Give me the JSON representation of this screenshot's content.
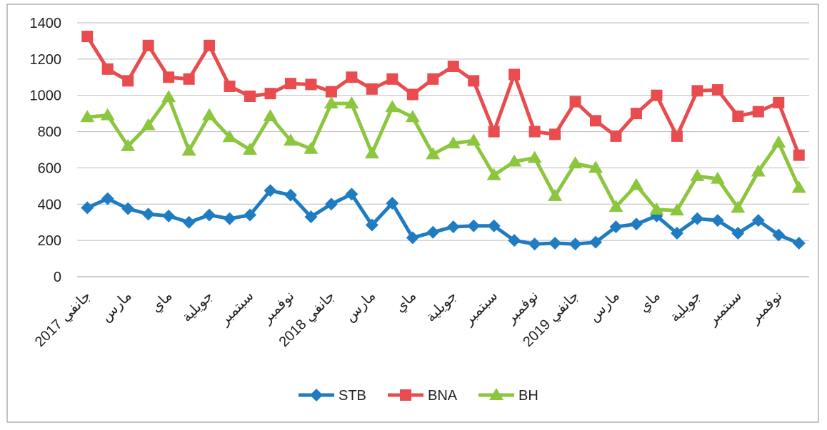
{
  "chart_data": {
    "type": "line",
    "categories": [
      "جانفي 2017",
      null,
      "مارس",
      null,
      "ماي",
      null,
      "جويلية",
      null,
      "سبتمبر",
      null,
      "نوفمبر",
      null,
      "جانفي 2018",
      null,
      "مارس",
      null,
      "ماي",
      null,
      "جويلية",
      null,
      "سبتمبر",
      null,
      "نوفمبر",
      null,
      "جانفي 2019",
      null,
      "مارس",
      null,
      "ماي",
      null,
      "جويلية",
      null,
      "سبتمبر",
      null,
      "نوفمبر",
      null
    ],
    "series": [
      {
        "name": "STB",
        "color": "#1f7cc1",
        "marker": "diamond",
        "values": [
          380,
          430,
          375,
          345,
          335,
          300,
          340,
          320,
          340,
          475,
          450,
          330,
          400,
          455,
          285,
          405,
          215,
          245,
          275,
          280,
          280,
          200,
          180,
          185,
          180,
          190,
          275,
          290,
          335,
          240,
          320,
          310,
          240,
          310,
          230,
          185
        ]
      },
      {
        "name": "BNA",
        "color": "#e84c4f",
        "marker": "square",
        "values": [
          1325,
          1145,
          1080,
          1275,
          1100,
          1090,
          1275,
          1050,
          995,
          1010,
          1065,
          1060,
          1020,
          1100,
          1035,
          1090,
          1005,
          1090,
          1160,
          1080,
          800,
          1115,
          800,
          785,
          965,
          860,
          775,
          900,
          1000,
          775,
          1025,
          1030,
          885,
          910,
          960,
          670
        ]
      },
      {
        "name": "BH",
        "color": "#8cc63f",
        "marker": "triangle",
        "values": [
          880,
          890,
          720,
          835,
          990,
          695,
          890,
          770,
          700,
          885,
          750,
          705,
          955,
          955,
          680,
          935,
          880,
          675,
          735,
          750,
          560,
          635,
          655,
          445,
          625,
          600,
          385,
          505,
          370,
          365,
          555,
          540,
          380,
          580,
          740,
          490
        ]
      }
    ],
    "ylim": [
      0,
      1400
    ],
    "yticks": [
      0,
      200,
      400,
      600,
      800,
      1000,
      1200,
      1400
    ],
    "grid": true,
    "legend": "bottom"
  }
}
